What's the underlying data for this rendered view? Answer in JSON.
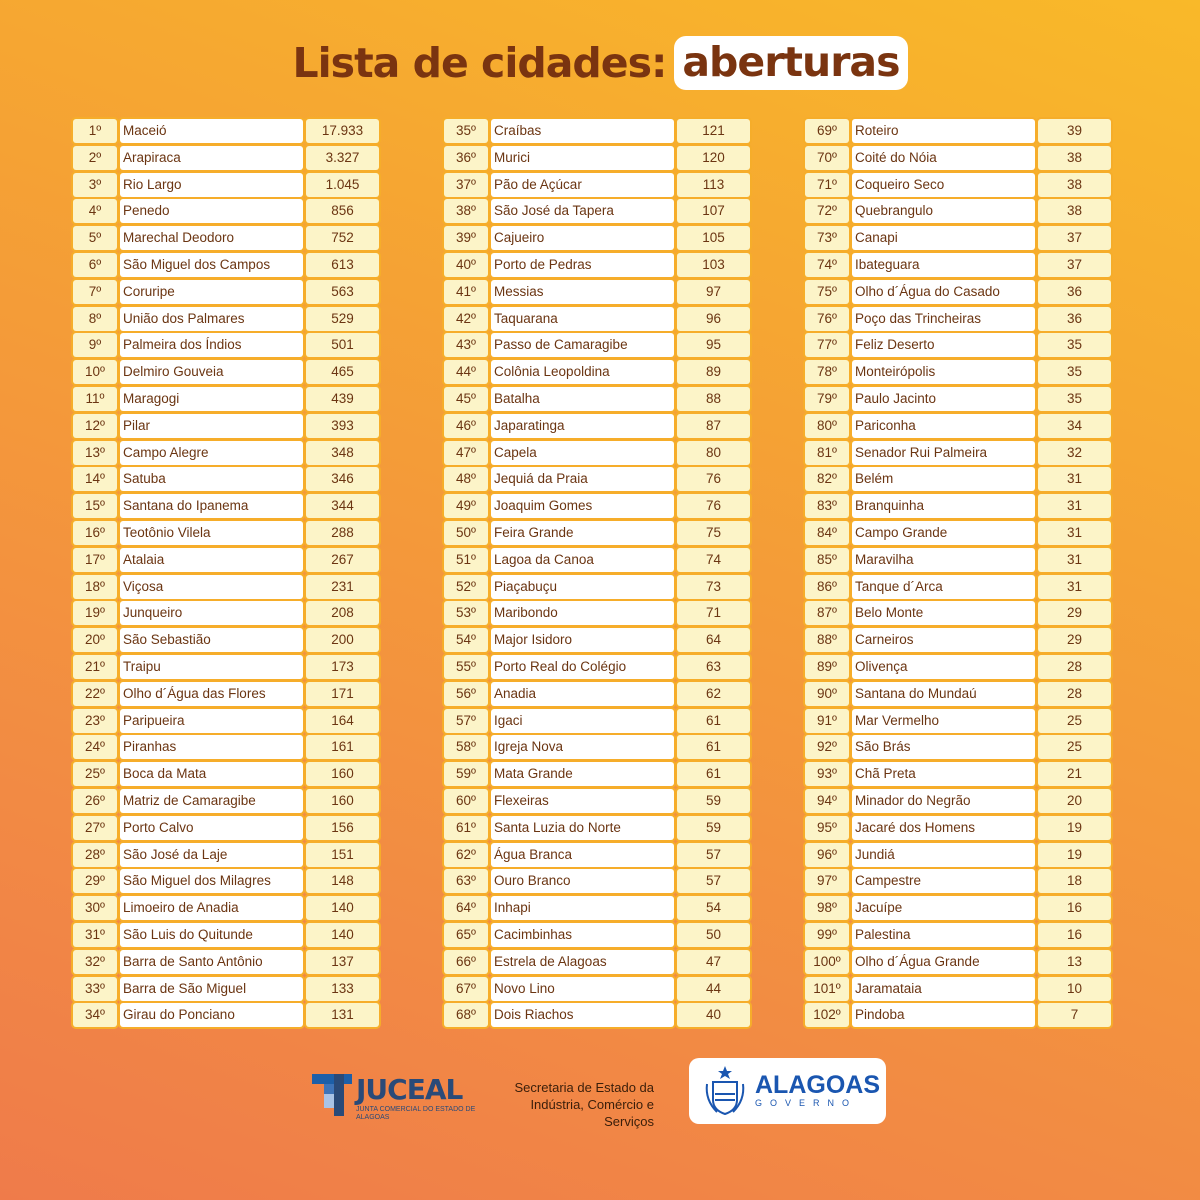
{
  "title": {
    "main": "Lista de cidades:",
    "highlight": "aberturas"
  },
  "columns": [
    [
      [
        "1º",
        "Maceió",
        "17.933"
      ],
      [
        "2º",
        "Arapiraca",
        "3.327"
      ],
      [
        "3º",
        "Rio Largo",
        "1.045"
      ],
      [
        "4º",
        "Penedo",
        "856"
      ],
      [
        "5º",
        "Marechal Deodoro",
        "752"
      ],
      [
        "6º",
        "São Miguel dos Campos",
        "613"
      ],
      [
        "7º",
        "Coruripe",
        "563"
      ],
      [
        "8º",
        "União dos Palmares",
        "529"
      ],
      [
        "9º",
        "Palmeira dos Índios",
        "501"
      ],
      [
        "10º",
        "Delmiro Gouveia",
        "465"
      ],
      [
        "11º",
        "Maragogi",
        "439"
      ],
      [
        "12º",
        "Pilar",
        "393"
      ],
      [
        "13º",
        "Campo Alegre",
        "348"
      ],
      [
        "14º",
        "Satuba",
        "346"
      ],
      [
        "15º",
        "Santana do Ipanema",
        "344"
      ],
      [
        "16º",
        "Teotônio Vilela",
        "288"
      ],
      [
        "17º",
        "Atalaia",
        "267"
      ],
      [
        "18º",
        "Viçosa",
        "231"
      ],
      [
        "19º",
        "Junqueiro",
        "208"
      ],
      [
        "20º",
        "São Sebastião",
        "200"
      ],
      [
        "21º",
        "Traipu",
        "173"
      ],
      [
        "22º",
        "Olho d´Água das Flores",
        "171"
      ],
      [
        "23º",
        "Paripueira",
        "164"
      ],
      [
        "24º",
        "Piranhas",
        "161"
      ],
      [
        "25º",
        "Boca da Mata",
        "160"
      ],
      [
        "26º",
        "Matriz de Camaragibe",
        "160"
      ],
      [
        "27º",
        "Porto Calvo",
        "156"
      ],
      [
        "28º",
        "São José da Laje",
        "151"
      ],
      [
        "29º",
        "São Miguel dos Milagres",
        "148"
      ],
      [
        "30º",
        "Limoeiro de Anadia",
        "140"
      ],
      [
        "31º",
        "São Luis do Quitunde",
        "140"
      ],
      [
        "32º",
        "Barra de Santo Antônio",
        "137"
      ],
      [
        "33º",
        "Barra de São Miguel",
        "133"
      ],
      [
        "34º",
        "Girau do Ponciano",
        "131"
      ]
    ],
    [
      [
        "35º",
        "Craíbas",
        "121"
      ],
      [
        "36º",
        "Murici",
        "120"
      ],
      [
        "37º",
        "Pão de Açúcar",
        "113"
      ],
      [
        "38º",
        "São José da Tapera",
        "107"
      ],
      [
        "39º",
        "Cajueiro",
        "105"
      ],
      [
        "40º",
        "Porto de Pedras",
        "103"
      ],
      [
        "41º",
        "Messias",
        "97"
      ],
      [
        "42º",
        "Taquarana",
        "96"
      ],
      [
        "43º",
        "Passo de Camaragibe",
        "95"
      ],
      [
        "44º",
        "Colônia Leopoldina",
        "89"
      ],
      [
        "45º",
        "Batalha",
        "88"
      ],
      [
        "46º",
        "Japaratinga",
        "87"
      ],
      [
        "47º",
        "Capela",
        "80"
      ],
      [
        "48º",
        "Jequiá da Praia",
        "76"
      ],
      [
        "49º",
        "Joaquim Gomes",
        "76"
      ],
      [
        "50º",
        "Feira Grande",
        "75"
      ],
      [
        "51º",
        "Lagoa da Canoa",
        "74"
      ],
      [
        "52º",
        "Piaçabuçu",
        "73"
      ],
      [
        "53º",
        "Maribondo",
        "71"
      ],
      [
        "54º",
        "Major Isidoro",
        "64"
      ],
      [
        "55º",
        "Porto Real do Colégio",
        "63"
      ],
      [
        "56º",
        "Anadia",
        "62"
      ],
      [
        "57º",
        "Igaci",
        "61"
      ],
      [
        "58º",
        "Igreja Nova",
        "61"
      ],
      [
        "59º",
        "Mata Grande",
        "61"
      ],
      [
        "60º",
        "Flexeiras",
        "59"
      ],
      [
        "61º",
        "Santa Luzia do Norte",
        "59"
      ],
      [
        "62º",
        "Água Branca",
        "57"
      ],
      [
        "63º",
        "Ouro Branco",
        "57"
      ],
      [
        "64º",
        "Inhapi",
        "54"
      ],
      [
        "65º",
        "Cacimbinhas",
        "50"
      ],
      [
        "66º",
        "Estrela de Alagoas",
        "47"
      ],
      [
        "67º",
        "Novo Lino",
        "44"
      ],
      [
        "68º",
        "Dois Riachos",
        "40"
      ]
    ],
    [
      [
        "69º",
        "Roteiro",
        "39"
      ],
      [
        "70º",
        "Coité do Nóia",
        "38"
      ],
      [
        "71º",
        "Coqueiro Seco",
        "38"
      ],
      [
        "72º",
        "Quebrangulo",
        "38"
      ],
      [
        "73º",
        "Canapi",
        "37"
      ],
      [
        "74º",
        "Ibateguara",
        "37"
      ],
      [
        "75º",
        "Olho d´Água do Casado",
        "36"
      ],
      [
        "76º",
        "Poço das Trincheiras",
        "36"
      ],
      [
        "77º",
        "Feliz Deserto",
        "35"
      ],
      [
        "78º",
        "Monteirópolis",
        "35"
      ],
      [
        "79º",
        "Paulo Jacinto",
        "35"
      ],
      [
        "80º",
        "Pariconha",
        "34"
      ],
      [
        "81º",
        "Senador Rui Palmeira",
        "32"
      ],
      [
        "82º",
        "Belém",
        "31"
      ],
      [
        "83º",
        "Branquinha",
        "31"
      ],
      [
        "84º",
        "Campo Grande",
        "31"
      ],
      [
        "85º",
        "Maravilha",
        "31"
      ],
      [
        "86º",
        "Tanque d´Arca",
        "31"
      ],
      [
        "87º",
        "Belo Monte",
        "29"
      ],
      [
        "88º",
        "Carneiros",
        "29"
      ],
      [
        "89º",
        "Olivença",
        "28"
      ],
      [
        "90º",
        "Santana do Mundaú",
        "28"
      ],
      [
        "91º",
        "Mar Vermelho",
        "25"
      ],
      [
        "92º",
        "São Brás",
        "25"
      ],
      [
        "93º",
        "Chã Preta",
        "21"
      ],
      [
        "94º",
        "Minador do Negrão",
        "20"
      ],
      [
        "95º",
        "Jacaré dos Homens",
        "19"
      ],
      [
        "96º",
        "Jundiá",
        "19"
      ],
      [
        "97º",
        "Campestre",
        "18"
      ],
      [
        "98º",
        "Jacuípe",
        "16"
      ],
      [
        "99º",
        "Palestina",
        "16"
      ],
      [
        "100º",
        "Olho d´Água Grande",
        "13"
      ],
      [
        "101º",
        "Jaramataia",
        "10"
      ],
      [
        "102º",
        "Pindoba",
        "7"
      ]
    ]
  ],
  "footer": {
    "juceal": {
      "name": "JUCEAL",
      "subtitle": "JUNTA COMERCIAL DO ESTADO DE ALAGOAS"
    },
    "secretaria": "Secretaria de Estado da Indústria, Comércio e Serviços",
    "governo": {
      "name": "ALAGOAS",
      "subtitle": "GOVERNO",
      "icon": "state-coat-of-arms-icon"
    }
  },
  "colors": {
    "title": "#7a3410",
    "cell_accent": "#fcf4c8",
    "border": "#f6ad2a",
    "logo_blue": "#1a56b0"
  }
}
